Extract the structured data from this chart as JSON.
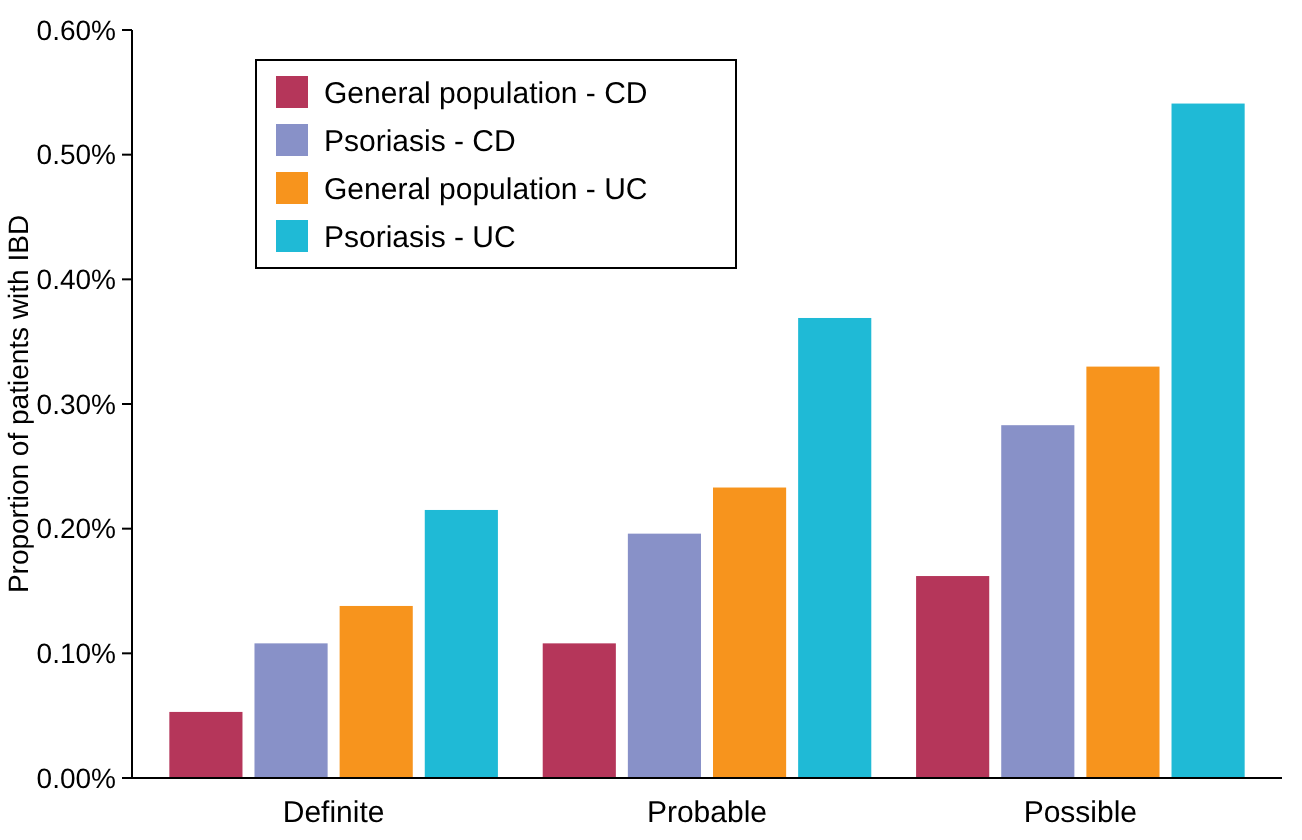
{
  "chart_data": {
    "type": "bar",
    "ylabel": "Proportion of patients with IBD",
    "categories": [
      "Definite",
      "Probable",
      "Possible"
    ],
    "series": [
      {
        "name": "General population - CD",
        "color": "#b5365a",
        "values": [
          0.053,
          0.108,
          0.162
        ]
      },
      {
        "name": "Psoriasis - CD",
        "color": "#8891c8",
        "values": [
          0.108,
          0.196,
          0.283
        ]
      },
      {
        "name": "General population - UC",
        "color": "#f7941d",
        "values": [
          0.138,
          0.233,
          0.33
        ]
      },
      {
        "name": "Psoriasis - UC",
        "color": "#1fbad6",
        "values": [
          0.215,
          0.369,
          0.541
        ]
      }
    ],
    "ylim": [
      0,
      0.6
    ],
    "yticks": [
      {
        "value": 0,
        "label": "0.00%"
      },
      {
        "value": 0.1,
        "label": "0.10%"
      },
      {
        "value": 0.2,
        "label": "0.20%"
      },
      {
        "value": 0.3,
        "label": "0.30%"
      },
      {
        "value": 0.4,
        "label": "0.40%"
      },
      {
        "value": 0.5,
        "label": "0.50%"
      },
      {
        "value": 0.6,
        "label": "0.60%"
      }
    ],
    "legend": "top left",
    "grid": false
  }
}
